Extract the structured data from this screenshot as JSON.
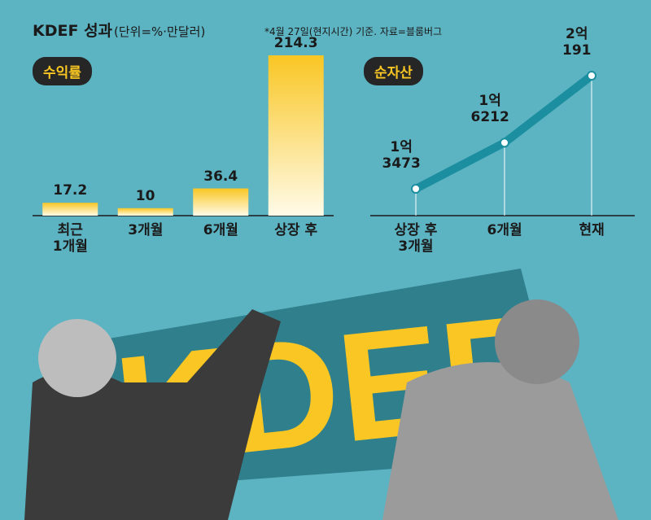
{
  "header": {
    "title": "KDEF 성과",
    "unit": "(단위=%·만달러)",
    "note": "*4월 27일(현지시간) 기준. 자료=블룸버그"
  },
  "chart_data": [
    {
      "type": "bar",
      "title": "수익률",
      "categories": [
        "최근\n1개월",
        "3개월",
        "6개월",
        "상장 후"
      ],
      "values": [
        17.2,
        10,
        36.4,
        214.3
      ],
      "color": "#f9c623"
    },
    {
      "type": "line",
      "title": "순자산",
      "categories": [
        "상장 후\n3개월",
        "6개월",
        "현재"
      ],
      "values": [
        13473,
        16212,
        20191
      ],
      "value_labels": [
        "1억\n3473",
        "1억\n6212",
        "2억\n191"
      ],
      "color": "#1b8fa0"
    }
  ],
  "illustration": {
    "text": "KDEF"
  }
}
